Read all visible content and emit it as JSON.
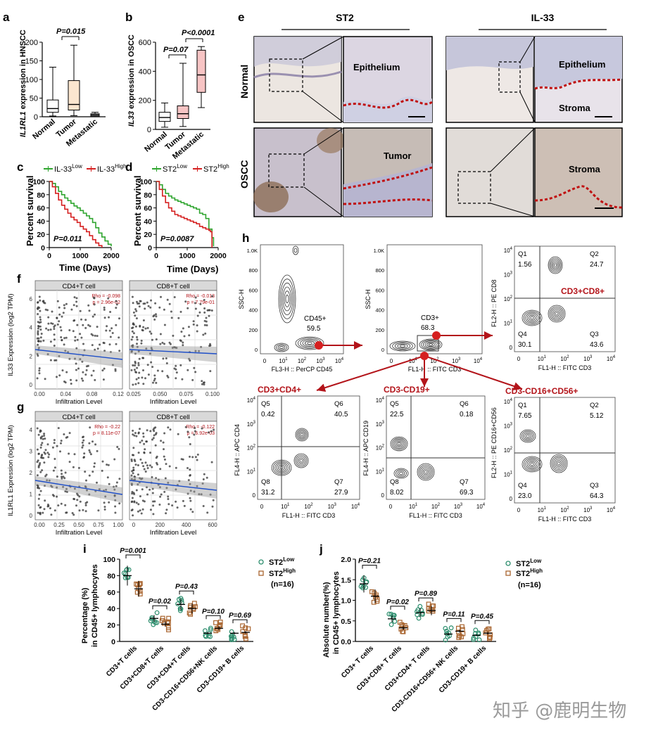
{
  "panels": {
    "a": {
      "letter": "a",
      "pvalue": "P=0.015",
      "ylabel_gene": "IL1RL1",
      "ylabel_rest": " expression in HNSCC",
      "yticks": [
        "0",
        "50",
        "100",
        "150",
        "200"
      ]
    },
    "b": {
      "letter": "b",
      "p1": "P=0.07",
      "p2": "P<0.0001",
      "ylabel_gene": "IL33",
      "ylabel_rest": " expression in OSCC",
      "yticks": [
        "0",
        "200",
        "400",
        "600"
      ]
    },
    "c": {
      "letter": "c",
      "legend_low": "IL-33",
      "legend_high": "IL-33",
      "pvalue": "P=0.011"
    },
    "d": {
      "letter": "d",
      "legend_low": "ST2",
      "legend_high": "ST2",
      "pvalue": "P=0.0087"
    },
    "e": {
      "letter": "e",
      "col1": "ST2",
      "col2": "IL-33",
      "row1": "Normal",
      "row2": "OSCC",
      "epithelium": "Epithelium",
      "stroma": "Stroma",
      "tumor": "Tumor"
    },
    "f": {
      "letter": "f",
      "ylabel": "IL33 Expression (log2 TPM)",
      "strip1": "CD4+T cell",
      "strip2": "CD8+T cell",
      "rho1": "Rho = -0.098",
      "p1": "p = 2.96e-02",
      "rho2": "Rho = -0.013",
      "p2": "p = 7.79e-01",
      "xticks1": [
        "0.00",
        "0.04",
        "0.08",
        "0.12"
      ],
      "xticks2": [
        "0.025",
        "0.050",
        "0.075",
        "0.100"
      ],
      "yticks": [
        "0",
        "2",
        "4",
        "6"
      ]
    },
    "g": {
      "letter": "g",
      "ylabel": "IL1RL1 Expression (log2 TPM)",
      "strip1": "CD4+T cell",
      "strip2": "CD8+T cell",
      "rho1": "Rho = -0.22",
      "p1": "p = 8.11e-07",
      "rho2": "Rho = -0.122",
      "p2": "p = 6.92e-03",
      "xticks1": [
        "0.00",
        "0.25",
        "0.50",
        "0.75",
        "1.00"
      ],
      "xticks2": [
        "0",
        "200",
        "400",
        "600"
      ],
      "yticks": [
        "0",
        "1",
        "2",
        "3",
        "4"
      ]
    },
    "h": {
      "letter": "h",
      "g1_y": "SSC-H",
      "g1_x": "FL3-H :: PerCP CD45",
      "g1_gate": "CD45+",
      "g1_val": "59.5",
      "g2_y": "SSC-H",
      "g2_x": "FL1-H :: FITC CD3",
      "g2_gate": "CD3+",
      "g2_val": "68.3",
      "cd8_title": "CD3+CD8+",
      "cd8_y": "FL2-H :: PE CD8",
      "cd8_x": "FL1-H :: FITC CD3",
      "cd8_q": [
        "Q1",
        "Q2",
        "Q4",
        "Q3"
      ],
      "cd8_v": [
        "1.56",
        "24.7",
        "30.1",
        "43.6"
      ],
      "cd4_title": "CD3+CD4+",
      "cd4_y": "FL4-H :: APC CD4",
      "cd4_x": "FL1-H :: FITC CD3",
      "cd4_q": [
        "Q5",
        "Q6",
        "Q8",
        "Q7"
      ],
      "cd4_v": [
        "0.42",
        "40.5",
        "31.2",
        "27.9"
      ],
      "cd19_title": "CD3-CD19+",
      "cd19_y": "FL4-H :: APC CD19",
      "cd19_x": "FL1-H :: FITC CD3",
      "cd19_q": [
        "Q5",
        "Q6",
        "Q8",
        "Q7"
      ],
      "cd19_v": [
        "22.5",
        "0.18",
        "8.02",
        "69.3"
      ],
      "nk_title": "CD3-CD16+CD56+",
      "nk_y": "FL2-H :: PE CD16+CD56",
      "nk_x": "FL1-H :: FITC CD3",
      "nk_q": [
        "Q1",
        "Q2",
        "Q4",
        "Q3"
      ],
      "nk_v": [
        "7.65",
        "5.12",
        "23.0",
        "64.3"
      ],
      "ssc_ticks": [
        "0",
        "200",
        "400",
        "600",
        "800",
        "1.0K"
      ]
    },
    "i": {
      "letter": "i",
      "ylabel1": "Percentage (%)",
      "ylabel2": "in CD45+ lymphocytes",
      "legend_low": "ST2",
      "legend_high": "ST2",
      "n": "(n=16)",
      "pvalues": [
        "P=0.001",
        "P=0.02",
        "P=0.43",
        "P=0.10",
        "P=0.69"
      ],
      "categories": [
        "CD3+T cells",
        "CD3+CD8+T cells",
        "CD3+CD4+T cells",
        "CD3-CD16+CD56+NK cells",
        "CD3-CD19+ B cells"
      ],
      "yticks": [
        "0",
        "20",
        "40",
        "60",
        "80",
        "100"
      ]
    },
    "j": {
      "letter": "j",
      "ylabel1": "Absolute number(%)",
      "ylabel2": "in CD45+ lymphocytes",
      "legend_low": "ST2",
      "legend_high": "ST2",
      "n": "(n=16)",
      "pvalues": [
        "P=0.21",
        "P=0.02",
        "P=0.89",
        "P=0.11",
        "P=0.45"
      ],
      "categories": [
        "CD3+ T cells",
        "CD3+CD8+ T cells",
        "CD3+CD4+ T cells",
        "CD3-CD16+CD56+ NK cells",
        "CD3-CD19+ B cells"
      ],
      "yticks": [
        "0.0",
        "0.5",
        "1.0",
        "1.5",
        "2.0"
      ]
    }
  },
  "common": {
    "x_normal": "Normal",
    "x_tumor": "Tumor",
    "x_metastatic": "Metastatic",
    "low": "Low",
    "high": "High",
    "surv_ylabel": "Percent survival",
    "surv_xlabel": "Time (Days)",
    "surv_yticks": [
      "0",
      "20",
      "40",
      "60",
      "80",
      "100"
    ],
    "surv_xticks": [
      "0",
      "1000",
      "2000"
    ],
    "infil_xlabel": "Infiltration Level",
    "log_ticks": [
      "0",
      "10",
      "10",
      "10",
      "10"
    ]
  },
  "watermark": "知乎 @鹿明生物",
  "colors": {
    "green": "#2fa52f",
    "red": "#d52020",
    "dark_red": "#b3141a",
    "box_a": "#fbe6cf",
    "box_b": "#f7c4c4",
    "low_dot": "#2f8f6f",
    "high_dot": "#a9652f"
  },
  "chart_data": [
    {
      "type": "box",
      "title": "a",
      "categories": [
        "Normal",
        "Tumor",
        "Metastatic"
      ],
      "values": {
        "median": [
          22,
          33,
          5
        ],
        "q1": [
          12,
          18,
          2
        ],
        "q3": [
          45,
          97,
          8
        ],
        "min": [
          2,
          3,
          0
        ],
        "max": [
          133,
          192,
          12
        ]
      },
      "ylabel": "IL1RL1 expression in HNSCC",
      "ylim": [
        0,
        200
      ]
    },
    {
      "type": "box",
      "title": "b",
      "categories": [
        "Normal",
        "Tumor",
        "Metastatic"
      ],
      "values": {
        "median": [
          82,
          108,
          375
        ],
        "q1": [
          55,
          75,
          255
        ],
        "q3": [
          118,
          162,
          545
        ],
        "min": [
          15,
          20,
          150
        ],
        "max": [
          182,
          455,
          570
        ]
      },
      "ylabel": "IL33 expression in OSCC",
      "ylim": [
        0,
        600
      ]
    },
    {
      "type": "line",
      "title": "c",
      "xlabel": "Time (Days)",
      "ylabel": "Percent survival",
      "ylim": [
        0,
        100
      ],
      "xlim": [
        0,
        2000
      ],
      "series": [
        {
          "name": "IL-33 Low",
          "x": [
            0,
            100,
            200,
            300,
            400,
            500,
            600,
            700,
            800,
            900,
            1000,
            1100,
            1200,
            1300,
            1400,
            1500,
            1600,
            1700,
            1800,
            1900,
            2000
          ],
          "values": [
            100,
            97,
            92,
            85,
            80,
            75,
            71,
            67,
            63,
            60,
            56,
            52,
            48,
            44,
            38,
            30,
            22,
            16,
            10,
            5,
            2
          ]
        },
        {
          "name": "IL-33 High",
          "x": [
            0,
            100,
            200,
            300,
            400,
            500,
            600,
            700,
            800,
            900,
            1000,
            1100,
            1200,
            1300,
            1400,
            1500,
            1600,
            1700
          ],
          "values": [
            100,
            92,
            82,
            72,
            64,
            58,
            52,
            46,
            42,
            38,
            32,
            28,
            24,
            18,
            12,
            7,
            3,
            0
          ]
        }
      ]
    },
    {
      "type": "line",
      "title": "d",
      "xlabel": "Time (Days)",
      "ylabel": "Percent survival",
      "ylim": [
        0,
        100
      ],
      "xlim": [
        0,
        2000
      ],
      "series": [
        {
          "name": "ST2 Low",
          "x": [
            0,
            100,
            200,
            300,
            400,
            500,
            600,
            700,
            800,
            900,
            1000,
            1100,
            1200,
            1300,
            1400,
            1500,
            1600,
            1700,
            1800,
            1850
          ],
          "values": [
            100,
            95,
            88,
            82,
            78,
            75,
            72,
            70,
            68,
            66,
            64,
            62,
            60,
            58,
            52,
            50,
            44,
            28,
            15,
            2
          ]
        },
        {
          "name": "ST2 High",
          "x": [
            0,
            100,
            200,
            300,
            400,
            500,
            600,
            700,
            800,
            900,
            1000,
            1100,
            1200,
            1300,
            1400,
            1500,
            1600,
            1700,
            1750,
            1800
          ],
          "values": [
            100,
            88,
            78,
            68,
            60,
            55,
            50,
            48,
            46,
            44,
            42,
            40,
            38,
            36,
            32,
            30,
            28,
            26,
            24,
            0
          ]
        }
      ]
    },
    {
      "type": "dot",
      "title": "i",
      "categories": [
        "CD3+T cells",
        "CD3+CD8+T cells",
        "CD3+CD4+T cells",
        "CD3-CD16+CD56+NK cells",
        "CD3-CD19+ B cells"
      ],
      "series": [
        {
          "name": "ST2 Low",
          "values": [
            80,
            28,
            45,
            10,
            10
          ]
        },
        {
          "name": "ST2 High",
          "values": [
            64,
            21,
            40,
            16,
            11
          ]
        }
      ],
      "ylim": [
        0,
        100
      ]
    },
    {
      "type": "dot",
      "title": "j",
      "categories": [
        "CD3+ T cells",
        "CD3+CD8+ T cells",
        "CD3+CD4+ T cells",
        "CD3-CD16+CD56+ NK cells",
        "CD3-CD19+ B cells"
      ],
      "series": [
        {
          "name": "ST2 Low",
          "values": [
            1.4,
            0.55,
            0.7,
            0.18,
            0.15
          ]
        },
        {
          "name": "ST2 High",
          "values": [
            1.1,
            0.33,
            0.75,
            0.25,
            0.2
          ]
        }
      ],
      "ylim": [
        0,
        2.0
      ]
    }
  ]
}
